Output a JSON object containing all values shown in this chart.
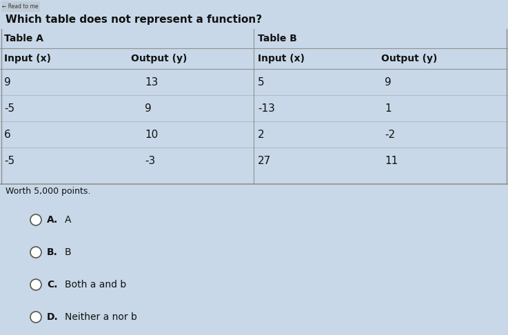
{
  "question": "Which table does not represent a function?",
  "worth_text": "Worth 5,000 points.",
  "table_a_title": "Table A",
  "table_b_title": "Table B",
  "col_headers": [
    "Input (x)",
    "Output (y)"
  ],
  "table_a_data": [
    [
      "9",
      "13"
    ],
    [
      "-5",
      "9"
    ],
    [
      "6",
      "10"
    ],
    [
      "-5",
      "-3"
    ]
  ],
  "table_b_data": [
    [
      "5",
      "9"
    ],
    [
      "-13",
      "1"
    ],
    [
      "2",
      "-2"
    ],
    [
      "27",
      "11"
    ]
  ],
  "options": [
    [
      "A.",
      "A"
    ],
    [
      "B.",
      "B"
    ],
    [
      "C.",
      "Both a and b"
    ],
    [
      "D.",
      "Neither a nor b"
    ]
  ],
  "bg_color": "#c8d8e8",
  "table_bg": "#c8d8e8",
  "table_border_color": "#909090",
  "option_bg_color": "#dce8f0",
  "option_border_color": "#b0bcc8",
  "text_color": "#111111",
  "worth_fontsize": 9,
  "question_fontsize": 11,
  "header_fontsize": 10,
  "data_fontsize": 11,
  "option_fontsize": 10
}
